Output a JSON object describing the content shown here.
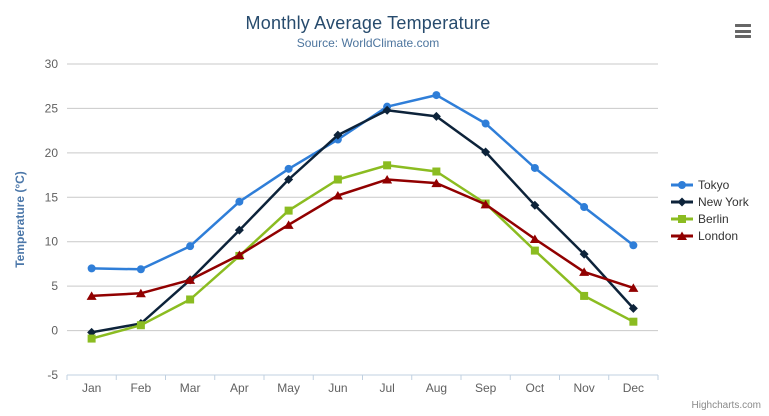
{
  "title": "Monthly Average Temperature",
  "subtitle": "Source: WorldClimate.com",
  "credits": "Highcharts.com",
  "export_menu": {
    "icon": "hamburger-icon"
  },
  "chart_data": {
    "type": "line",
    "title": "Monthly Average Temperature",
    "subtitle": "Source: WorldClimate.com",
    "categories": [
      "Jan",
      "Feb",
      "Mar",
      "Apr",
      "May",
      "Jun",
      "Jul",
      "Aug",
      "Sep",
      "Oct",
      "Nov",
      "Dec"
    ],
    "series": [
      {
        "name": "Tokyo",
        "color": "#2f7ed8",
        "marker": "circle",
        "values": [
          7.0,
          6.9,
          9.5,
          14.5,
          18.2,
          21.5,
          25.2,
          26.5,
          23.3,
          18.3,
          13.9,
          9.6
        ]
      },
      {
        "name": "New York",
        "color": "#0d233a",
        "marker": "diamond",
        "values": [
          -0.2,
          0.8,
          5.7,
          11.3,
          17.0,
          22.0,
          24.8,
          24.1,
          20.1,
          14.1,
          8.6,
          2.5
        ]
      },
      {
        "name": "Berlin",
        "color": "#8bbc21",
        "marker": "square",
        "values": [
          -0.9,
          0.6,
          3.5,
          8.4,
          13.5,
          17.0,
          18.6,
          17.9,
          14.3,
          9.0,
          3.9,
          1.0
        ]
      },
      {
        "name": "London",
        "color": "#910000",
        "marker": "triangle",
        "values": [
          3.9,
          4.2,
          5.7,
          8.5,
          11.9,
          15.2,
          17.0,
          16.6,
          14.2,
          10.3,
          6.6,
          4.8
        ]
      }
    ],
    "xlabel": "",
    "ylabel": "Temperature (°C)",
    "ylim": [
      -5,
      30
    ],
    "ytick_interval": 5,
    "yticks": [
      -5,
      0,
      5,
      10,
      15,
      20,
      25,
      30
    ],
    "grid": true,
    "legend_position": "right",
    "colors": {
      "title": "#274b6d",
      "subtitle": "#4d759e",
      "axis_title": "#4b77a9",
      "axis_labels": "#606060",
      "gridline": "#c9c9c9",
      "axis_line": "#c0d0e0",
      "legend_text": "#333333"
    }
  }
}
